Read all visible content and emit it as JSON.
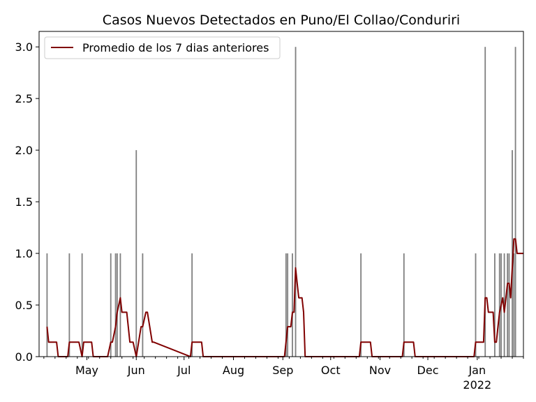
{
  "chart_data": {
    "type": "bar",
    "title": "Casos Nuevos Detectados en Puno/El Collao/Conduriri",
    "xlabel": "",
    "ylabel": "",
    "x_range": [
      "2021-04-01",
      "2022-01-30"
    ],
    "ylim": [
      0,
      3.15
    ],
    "y_ticks": [
      "0.0",
      "0.5",
      "1.0",
      "1.5",
      "2.0",
      "2.5",
      "3.0"
    ],
    "x_ticks": [
      {
        "date": "2021-05-01",
        "label": "May",
        "sublabel": ""
      },
      {
        "date": "2021-06-01",
        "label": "Jun",
        "sublabel": ""
      },
      {
        "date": "2021-07-01",
        "label": "Jul",
        "sublabel": ""
      },
      {
        "date": "2021-08-01",
        "label": "Aug",
        "sublabel": ""
      },
      {
        "date": "2021-09-01",
        "label": "Sep",
        "sublabel": ""
      },
      {
        "date": "2021-10-01",
        "label": "Oct",
        "sublabel": ""
      },
      {
        "date": "2021-11-01",
        "label": "Nov",
        "sublabel": ""
      },
      {
        "date": "2021-12-01",
        "label": "Dec",
        "sublabel": ""
      },
      {
        "date": "2022-01-01",
        "label": "Jan",
        "sublabel": "2022"
      }
    ],
    "bar_color": "#808080",
    "line_color": "#800000",
    "legend": {
      "placement": "top-left"
    },
    "series": [
      {
        "type": "bar",
        "dates": [
          "2021-04-06",
          "2021-04-20",
          "2021-04-28",
          "2021-05-16",
          "2021-05-19",
          "2021-05-20",
          "2021-05-22",
          "2021-06-01",
          "2021-06-05",
          "2021-07-06",
          "2021-09-03",
          "2021-09-04",
          "2021-09-07",
          "2021-09-09",
          "2021-10-20",
          "2021-11-16",
          "2021-12-31",
          "2022-01-06",
          "2022-01-12",
          "2022-01-15",
          "2022-01-16",
          "2022-01-18",
          "2022-01-20",
          "2022-01-21",
          "2022-01-23",
          "2022-01-24",
          "2022-01-25"
        ],
        "values": [
          1,
          1,
          1,
          1,
          1,
          1,
          1,
          2,
          1,
          1,
          1,
          1,
          1,
          3,
          1,
          1,
          1,
          3,
          1,
          1,
          1,
          1,
          1,
          1,
          2,
          1,
          3
        ]
      },
      {
        "type": "line",
        "name": "Promedio de los 7 dias anteriores",
        "dates": [
          "2021-04-06",
          "2021-04-07",
          "2021-04-12",
          "2021-04-13",
          "2021-04-19",
          "2021-04-20",
          "2021-04-26",
          "2021-04-28",
          "2021-04-29",
          "2021-05-04",
          "2021-05-05",
          "2021-05-14",
          "2021-05-16",
          "2021-05-17",
          "2021-05-19",
          "2021-05-20",
          "2021-05-22",
          "2021-05-23",
          "2021-05-26",
          "2021-05-27",
          "2021-05-28",
          "2021-05-30",
          "2021-06-01",
          "2021-06-04",
          "2021-06-05",
          "2021-06-07",
          "2021-06-08",
          "2021-06-11",
          "2021-06-12",
          "2021-07-05",
          "2021-07-06",
          "2021-07-12",
          "2021-07-13",
          "2021-09-02",
          "2021-09-03",
          "2021-09-04",
          "2021-09-06",
          "2021-09-07",
          "2021-09-08",
          "2021-09-09",
          "2021-09-10",
          "2021-09-11",
          "2021-09-13",
          "2021-09-14",
          "2021-09-15",
          "2021-10-19",
          "2021-10-20",
          "2021-10-26",
          "2021-10-27",
          "2021-11-15",
          "2021-11-16",
          "2021-11-22",
          "2021-11-23",
          "2021-12-30",
          "2021-12-31",
          "2022-01-05",
          "2022-01-06",
          "2022-01-07",
          "2022-01-08",
          "2022-01-11",
          "2022-01-12",
          "2022-01-13",
          "2022-01-14",
          "2022-01-15",
          "2022-01-17",
          "2022-01-18",
          "2022-01-19",
          "2022-01-20",
          "2022-01-21",
          "2022-01-22",
          "2022-01-23",
          "2022-01-24",
          "2022-01-25",
          "2022-01-26",
          "2022-01-27",
          "2022-01-28",
          "2022-01-29",
          "2022-01-30"
        ],
        "values": [
          0.29,
          0.14,
          0.14,
          0.0,
          0.0,
          0.14,
          0.14,
          0.0,
          0.14,
          0.14,
          0.0,
          0.0,
          0.14,
          0.14,
          0.29,
          0.43,
          0.57,
          0.43,
          0.43,
          0.29,
          0.14,
          0.14,
          0.0,
          0.29,
          0.29,
          0.43,
          0.43,
          0.14,
          0.14,
          0.0,
          0.14,
          0.14,
          0.0,
          0.0,
          0.14,
          0.29,
          0.29,
          0.43,
          0.43,
          0.86,
          0.71,
          0.57,
          0.57,
          0.43,
          0.0,
          0.0,
          0.14,
          0.14,
          0.0,
          0.0,
          0.14,
          0.14,
          0.0,
          0.0,
          0.14,
          0.14,
          0.57,
          0.57,
          0.43,
          0.43,
          0.14,
          0.14,
          0.29,
          0.43,
          0.57,
          0.43,
          0.57,
          0.71,
          0.71,
          0.57,
          0.86,
          1.14,
          1.14,
          1.0,
          1.0,
          1.0,
          1.0,
          1.0
        ]
      }
    ]
  }
}
